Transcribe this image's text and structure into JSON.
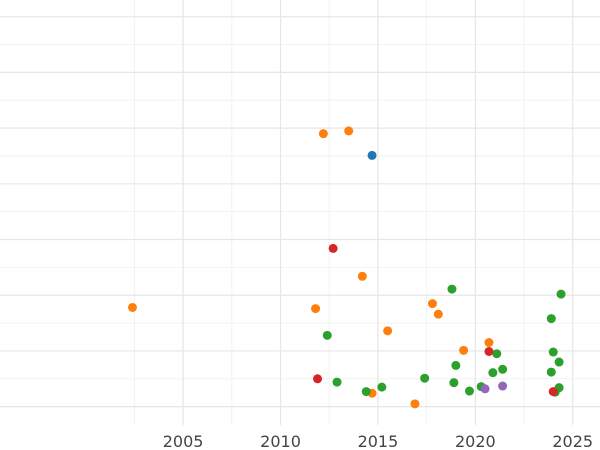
{
  "chart_data": {
    "type": "scatter",
    "title": "",
    "xlabel": "",
    "ylabel": "",
    "xlim": [
      1995.6,
      2026.4
    ],
    "ylim": [
      -0.33,
      7.3
    ],
    "x_ticks": [
      2005,
      2010,
      2015,
      2020,
      2025
    ],
    "x_tick_labels": [
      "2005",
      "2010",
      "2015",
      "2020",
      "2025"
    ],
    "y_ticks": [
      0,
      1,
      2,
      3,
      4,
      5,
      6,
      7
    ],
    "grid": true,
    "y_tick_labels_shown": false,
    "colors": {
      "blue": "#1f77b4",
      "orange": "#ff7f0e",
      "green": "#2ca02c",
      "red": "#d62728",
      "purple": "#9467bd"
    },
    "points": [
      {
        "x": 2002.4,
        "y": 1.78,
        "color": "orange"
      },
      {
        "x": 2011.8,
        "y": 1.76,
        "color": "orange"
      },
      {
        "x": 2012.2,
        "y": 4.9,
        "color": "orange"
      },
      {
        "x": 2013.5,
        "y": 4.95,
        "color": "orange"
      },
      {
        "x": 2014.2,
        "y": 2.34,
        "color": "orange"
      },
      {
        "x": 2014.7,
        "y": 0.24,
        "color": "orange"
      },
      {
        "x": 2015.5,
        "y": 1.36,
        "color": "orange"
      },
      {
        "x": 2016.9,
        "y": 0.05,
        "color": "orange"
      },
      {
        "x": 2017.8,
        "y": 1.85,
        "color": "orange"
      },
      {
        "x": 2018.1,
        "y": 1.66,
        "color": "orange"
      },
      {
        "x": 2019.4,
        "y": 1.01,
        "color": "orange"
      },
      {
        "x": 2020.7,
        "y": 1.15,
        "color": "orange"
      },
      {
        "x": 2014.7,
        "y": 4.51,
        "color": "blue"
      },
      {
        "x": 2012.4,
        "y": 1.28,
        "color": "green"
      },
      {
        "x": 2012.9,
        "y": 0.44,
        "color": "green"
      },
      {
        "x": 2014.4,
        "y": 0.27,
        "color": "green"
      },
      {
        "x": 2015.2,
        "y": 0.35,
        "color": "green"
      },
      {
        "x": 2017.4,
        "y": 0.51,
        "color": "green"
      },
      {
        "x": 2018.8,
        "y": 2.11,
        "color": "green"
      },
      {
        "x": 2018.9,
        "y": 0.43,
        "color": "green"
      },
      {
        "x": 2019.0,
        "y": 0.74,
        "color": "green"
      },
      {
        "x": 2019.7,
        "y": 0.28,
        "color": "green"
      },
      {
        "x": 2020.3,
        "y": 0.36,
        "color": "green"
      },
      {
        "x": 2020.9,
        "y": 0.61,
        "color": "green"
      },
      {
        "x": 2021.1,
        "y": 0.95,
        "color": "green"
      },
      {
        "x": 2021.4,
        "y": 0.67,
        "color": "green"
      },
      {
        "x": 2023.9,
        "y": 1.58,
        "color": "green"
      },
      {
        "x": 2023.9,
        "y": 0.62,
        "color": "green"
      },
      {
        "x": 2024.0,
        "y": 0.98,
        "color": "green"
      },
      {
        "x": 2024.1,
        "y": 0.26,
        "color": "green"
      },
      {
        "x": 2024.3,
        "y": 0.8,
        "color": "green"
      },
      {
        "x": 2024.3,
        "y": 0.34,
        "color": "green"
      },
      {
        "x": 2024.4,
        "y": 2.02,
        "color": "green"
      },
      {
        "x": 2011.9,
        "y": 0.5,
        "color": "red"
      },
      {
        "x": 2012.7,
        "y": 2.84,
        "color": "red"
      },
      {
        "x": 2020.7,
        "y": 0.99,
        "color": "red"
      },
      {
        "x": 2024.0,
        "y": 0.27,
        "color": "red"
      },
      {
        "x": 2020.5,
        "y": 0.32,
        "color": "purple"
      },
      {
        "x": 2021.4,
        "y": 0.37,
        "color": "purple"
      }
    ]
  }
}
